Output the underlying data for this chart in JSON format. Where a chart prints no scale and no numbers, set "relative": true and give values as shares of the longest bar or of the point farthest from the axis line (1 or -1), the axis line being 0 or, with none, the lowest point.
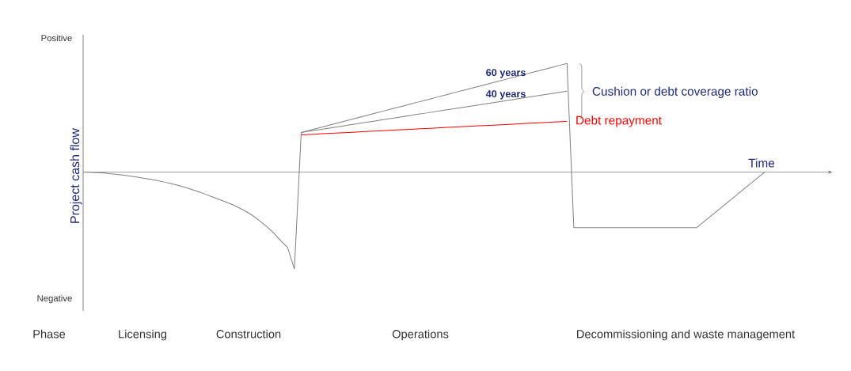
{
  "chart_data": {
    "type": "line",
    "relative": true,
    "xlabel": "Time",
    "ylabel": "Project cash flow",
    "categories": [
      null,
      null,
      null,
      null,
      null,
      null,
      null,
      null,
      null,
      null,
      null,
      null,
      null,
      null,
      null,
      null,
      null,
      null,
      null,
      null,
      null,
      null,
      null,
      null,
      null,
      null,
      null,
      null,
      null,
      null,
      null,
      null,
      null,
      null,
      null,
      null,
      null,
      null,
      null,
      null,
      null,
      null,
      null,
      null,
      null,
      null,
      null,
      null,
      null,
      null,
      null,
      null,
      null,
      null,
      null,
      null,
      null,
      null,
      null,
      null,
      null,
      null,
      null,
      null,
      null,
      null,
      null,
      null,
      null,
      null,
      null,
      null,
      null,
      null,
      null,
      null,
      null,
      null,
      null,
      null,
      null,
      null,
      null,
      null,
      null,
      null,
      null,
      null,
      null,
      null,
      null,
      null,
      null,
      null,
      null,
      null,
      null,
      null,
      null,
      null,
      null
    ],
    "series": [
      {
        "color": "#808080",
        "values": [
          0,
          -0.002,
          -0.005,
          -0.007,
          -0.015,
          -0.022,
          -0.029,
          -0.038,
          -0.047,
          -0.058,
          -0.067,
          -0.08,
          -0.093,
          -0.107,
          -0.123,
          -0.141,
          -0.161,
          -0.181,
          -0.204,
          -0.228,
          -0.252,
          -0.276,
          -0.301,
          -0.332,
          -0.365,
          -0.405,
          -0.453,
          -0.504,
          -0.562,
          -0.631,
          -0.693,
          -0.891,
          0.365,
          null,
          null,
          null,
          null,
          null,
          null,
          null,
          null,
          null,
          null,
          null,
          null,
          null,
          null,
          null,
          null,
          null,
          null,
          null,
          null,
          null,
          null,
          null,
          null,
          null,
          null,
          null,
          null,
          null,
          null,
          null,
          null,
          null,
          null,
          null,
          null,
          null,
          null,
          null,
          null,
          null,
          null,
          null,
          null,
          null,
          null,
          null,
          null,
          null,
          null,
          null,
          null,
          null,
          null,
          null,
          null,
          null,
          null,
          null,
          null,
          null,
          null,
          null,
          null,
          null,
          null,
          null,
          null
        ]
      },
      {
        "name": "60 years",
        "color": "#808080",
        "values": [
          null,
          null,
          null,
          null,
          null,
          null,
          null,
          null,
          null,
          null,
          null,
          null,
          null,
          null,
          null,
          null,
          null,
          null,
          null,
          null,
          null,
          null,
          null,
          null,
          null,
          null,
          null,
          null,
          null,
          null,
          null,
          null,
          0.365,
          0.381,
          0.398,
          0.414,
          0.43,
          0.446,
          0.463,
          0.479,
          0.495,
          0.512,
          0.528,
          0.544,
          0.56,
          0.577,
          0.593,
          0.609,
          0.626,
          0.642,
          0.658,
          0.674,
          0.691,
          0.707,
          0.723,
          0.74,
          0.756,
          0.772,
          0.788,
          0.805,
          0.821,
          0.837,
          0.853,
          0.87,
          0.886,
          0.902,
          0.919,
          0.935,
          0.951,
          0.967,
          0.984,
          1.0,
          -0.511,
          -0.511,
          -0.511,
          -0.511,
          -0.511,
          -0.511,
          -0.511,
          -0.511,
          -0.511,
          -0.511,
          -0.511,
          -0.511,
          -0.511,
          -0.511,
          -0.511,
          -0.511,
          -0.511,
          -0.511,
          -0.511,
          -0.46,
          -0.409,
          -0.358,
          -0.307,
          -0.256,
          -0.204,
          -0.153,
          -0.102,
          -0.051,
          0
        ]
      },
      {
        "name": "40 years",
        "color": "#808080",
        "values": [
          null,
          null,
          null,
          null,
          null,
          null,
          null,
          null,
          null,
          null,
          null,
          null,
          null,
          null,
          null,
          null,
          null,
          null,
          null,
          null,
          null,
          null,
          null,
          null,
          null,
          null,
          null,
          null,
          null,
          null,
          null,
          null,
          0.365,
          0.375,
          0.384,
          0.394,
          0.404,
          0.414,
          0.423,
          0.433,
          0.443,
          0.453,
          0.462,
          0.472,
          0.482,
          0.492,
          0.501,
          0.511,
          0.521,
          0.531,
          0.54,
          0.55,
          0.56,
          0.57,
          0.579,
          0.589,
          0.599,
          0.609,
          0.618,
          0.628,
          0.638,
          0.647,
          0.657,
          0.667,
          0.677,
          0.686,
          0.696,
          0.706,
          0.716,
          0.725,
          0.735,
          0.745,
          null,
          null,
          null,
          null,
          null,
          null,
          null,
          null,
          null,
          null,
          null,
          null,
          null,
          null,
          null,
          null,
          null,
          null,
          null,
          null,
          null,
          null,
          null,
          null,
          null,
          null,
          null,
          null,
          null
        ]
      },
      {
        "name": "Debt repayment",
        "color": "#ff0000",
        "values": [
          null,
          null,
          null,
          null,
          null,
          null,
          null,
          null,
          null,
          null,
          null,
          null,
          null,
          null,
          null,
          null,
          null,
          null,
          null,
          null,
          null,
          null,
          null,
          null,
          null,
          null,
          null,
          null,
          null,
          null,
          null,
          null,
          0.343,
          0.346,
          0.349,
          0.353,
          0.356,
          0.359,
          0.362,
          0.365,
          0.368,
          0.372,
          0.375,
          0.378,
          0.381,
          0.384,
          0.388,
          0.391,
          0.394,
          0.397,
          0.4,
          0.403,
          0.407,
          0.41,
          0.413,
          0.416,
          0.419,
          0.422,
          0.426,
          0.429,
          0.432,
          0.435,
          0.438,
          0.441,
          0.445,
          0.448,
          0.451,
          0.454,
          0.457,
          0.461,
          0.464,
          0.467,
          null,
          null,
          null,
          null,
          null,
          null,
          null,
          null,
          null,
          null,
          null,
          null,
          null,
          null,
          null,
          null,
          null,
          null,
          null,
          null,
          null,
          null,
          null,
          null,
          null,
          null,
          null,
          null,
          null
        ]
      }
    ],
    "annotations": [
      "Positive",
      "Negative",
      "Phase",
      "Licensing",
      "Construction",
      "Operations",
      "Decommissioning and waste management",
      "Cushion or debt coverage ratio"
    ]
  }
}
